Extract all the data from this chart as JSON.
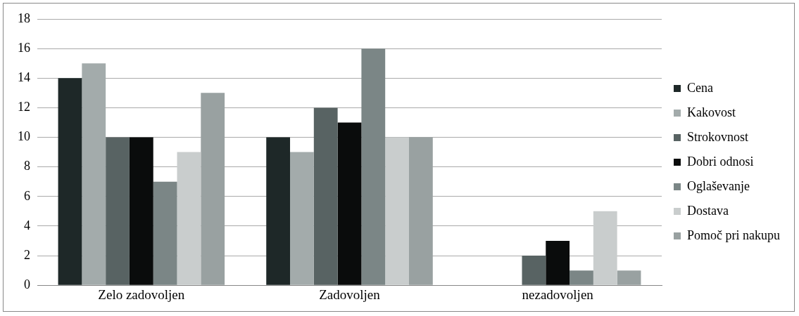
{
  "chart_data": {
    "type": "bar",
    "categories": [
      "Zelo zadovoljen",
      "Zadovoljen",
      "nezadovoljen"
    ],
    "series": [
      {
        "name": "Cena",
        "color": "#1e2828",
        "values": [
          14,
          10,
          0
        ]
      },
      {
        "name": "Kakovost",
        "color": "#a3abab",
        "values": [
          15,
          9,
          0
        ]
      },
      {
        "name": "Strokovnost",
        "color": "#586363",
        "values": [
          10,
          12,
          2
        ]
      },
      {
        "name": "Dobri odnosi",
        "color": "#0a0c0c",
        "values": [
          10,
          11,
          3
        ]
      },
      {
        "name": "Oglaševanje",
        "color": "#7b8686",
        "values": [
          7,
          16,
          1
        ]
      },
      {
        "name": "Dostava",
        "color": "#c9cdcd",
        "values": [
          9,
          10,
          5
        ]
      },
      {
        "name": "Pomoč pri nakupu",
        "color": "#99a1a1",
        "values": [
          13,
          10,
          1
        ]
      }
    ],
    "ylim": [
      0,
      18
    ],
    "yticks": [
      0,
      2,
      4,
      6,
      8,
      10,
      12,
      14,
      16,
      18
    ],
    "grid": "y",
    "legend": "right"
  }
}
